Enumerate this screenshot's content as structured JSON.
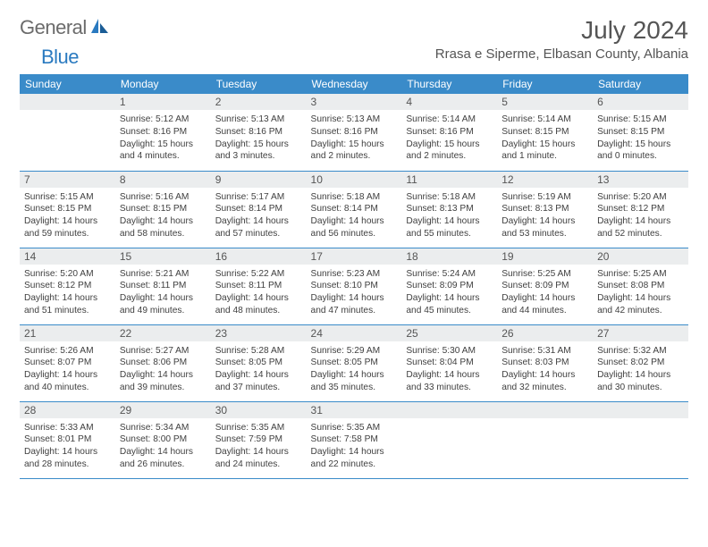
{
  "logo": {
    "text1": "General",
    "text2": "Blue"
  },
  "title": "July 2024",
  "location": "Rrasa e Siperme, Elbasan County, Albania",
  "colors": {
    "header_bg": "#3a8bc9",
    "header_text": "#ffffff",
    "daynum_bg": "#ebedee",
    "border": "#3a8bc9",
    "body_text": "#404040",
    "title_text": "#555555",
    "logo_gray": "#6b6b6b",
    "logo_blue": "#2a7ac0"
  },
  "weekdays": [
    "Sunday",
    "Monday",
    "Tuesday",
    "Wednesday",
    "Thursday",
    "Friday",
    "Saturday"
  ],
  "weeks": [
    [
      null,
      {
        "n": "1",
        "sr": "5:12 AM",
        "ss": "8:16 PM",
        "dl": "15 hours and 4 minutes."
      },
      {
        "n": "2",
        "sr": "5:13 AM",
        "ss": "8:16 PM",
        "dl": "15 hours and 3 minutes."
      },
      {
        "n": "3",
        "sr": "5:13 AM",
        "ss": "8:16 PM",
        "dl": "15 hours and 2 minutes."
      },
      {
        "n": "4",
        "sr": "5:14 AM",
        "ss": "8:16 PM",
        "dl": "15 hours and 2 minutes."
      },
      {
        "n": "5",
        "sr": "5:14 AM",
        "ss": "8:15 PM",
        "dl": "15 hours and 1 minute."
      },
      {
        "n": "6",
        "sr": "5:15 AM",
        "ss": "8:15 PM",
        "dl": "15 hours and 0 minutes."
      }
    ],
    [
      {
        "n": "7",
        "sr": "5:15 AM",
        "ss": "8:15 PM",
        "dl": "14 hours and 59 minutes."
      },
      {
        "n": "8",
        "sr": "5:16 AM",
        "ss": "8:15 PM",
        "dl": "14 hours and 58 minutes."
      },
      {
        "n": "9",
        "sr": "5:17 AM",
        "ss": "8:14 PM",
        "dl": "14 hours and 57 minutes."
      },
      {
        "n": "10",
        "sr": "5:18 AM",
        "ss": "8:14 PM",
        "dl": "14 hours and 56 minutes."
      },
      {
        "n": "11",
        "sr": "5:18 AM",
        "ss": "8:13 PM",
        "dl": "14 hours and 55 minutes."
      },
      {
        "n": "12",
        "sr": "5:19 AM",
        "ss": "8:13 PM",
        "dl": "14 hours and 53 minutes."
      },
      {
        "n": "13",
        "sr": "5:20 AM",
        "ss": "8:12 PM",
        "dl": "14 hours and 52 minutes."
      }
    ],
    [
      {
        "n": "14",
        "sr": "5:20 AM",
        "ss": "8:12 PM",
        "dl": "14 hours and 51 minutes."
      },
      {
        "n": "15",
        "sr": "5:21 AM",
        "ss": "8:11 PM",
        "dl": "14 hours and 49 minutes."
      },
      {
        "n": "16",
        "sr": "5:22 AM",
        "ss": "8:11 PM",
        "dl": "14 hours and 48 minutes."
      },
      {
        "n": "17",
        "sr": "5:23 AM",
        "ss": "8:10 PM",
        "dl": "14 hours and 47 minutes."
      },
      {
        "n": "18",
        "sr": "5:24 AM",
        "ss": "8:09 PM",
        "dl": "14 hours and 45 minutes."
      },
      {
        "n": "19",
        "sr": "5:25 AM",
        "ss": "8:09 PM",
        "dl": "14 hours and 44 minutes."
      },
      {
        "n": "20",
        "sr": "5:25 AM",
        "ss": "8:08 PM",
        "dl": "14 hours and 42 minutes."
      }
    ],
    [
      {
        "n": "21",
        "sr": "5:26 AM",
        "ss": "8:07 PM",
        "dl": "14 hours and 40 minutes."
      },
      {
        "n": "22",
        "sr": "5:27 AM",
        "ss": "8:06 PM",
        "dl": "14 hours and 39 minutes."
      },
      {
        "n": "23",
        "sr": "5:28 AM",
        "ss": "8:05 PM",
        "dl": "14 hours and 37 minutes."
      },
      {
        "n": "24",
        "sr": "5:29 AM",
        "ss": "8:05 PM",
        "dl": "14 hours and 35 minutes."
      },
      {
        "n": "25",
        "sr": "5:30 AM",
        "ss": "8:04 PM",
        "dl": "14 hours and 33 minutes."
      },
      {
        "n": "26",
        "sr": "5:31 AM",
        "ss": "8:03 PM",
        "dl": "14 hours and 32 minutes."
      },
      {
        "n": "27",
        "sr": "5:32 AM",
        "ss": "8:02 PM",
        "dl": "14 hours and 30 minutes."
      }
    ],
    [
      {
        "n": "28",
        "sr": "5:33 AM",
        "ss": "8:01 PM",
        "dl": "14 hours and 28 minutes."
      },
      {
        "n": "29",
        "sr": "5:34 AM",
        "ss": "8:00 PM",
        "dl": "14 hours and 26 minutes."
      },
      {
        "n": "30",
        "sr": "5:35 AM",
        "ss": "7:59 PM",
        "dl": "14 hours and 24 minutes."
      },
      {
        "n": "31",
        "sr": "5:35 AM",
        "ss": "7:58 PM",
        "dl": "14 hours and 22 minutes."
      },
      null,
      null,
      null
    ]
  ]
}
